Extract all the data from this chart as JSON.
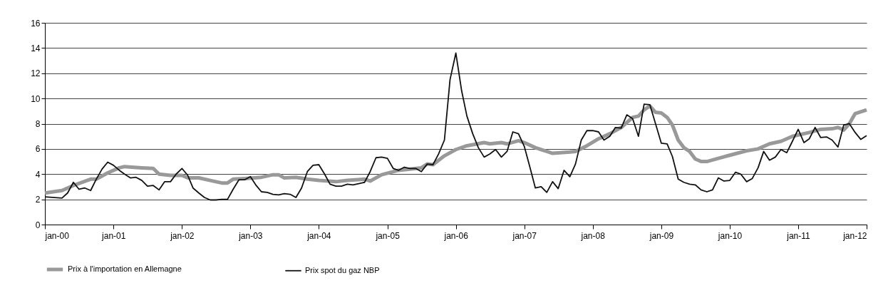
{
  "chart_data": {
    "type": "line",
    "xlim": [
      "2000-01",
      "2012-01"
    ],
    "xticks": [
      {
        "value": "2000-01",
        "label": "jan-00"
      },
      {
        "value": "2001-01",
        "label": "jan-01"
      },
      {
        "value": "2002-01",
        "label": "jan-02"
      },
      {
        "value": "2003-01",
        "label": "jan-03"
      },
      {
        "value": "2004-01",
        "label": "jan-04"
      },
      {
        "value": "2005-01",
        "label": "jan-05"
      },
      {
        "value": "2006-01",
        "label": "jan-06"
      },
      {
        "value": "2007-01",
        "label": "jan-07"
      },
      {
        "value": "2008-01",
        "label": "jan-08"
      },
      {
        "value": "2009-01",
        "label": "jan-09"
      },
      {
        "value": "2010-01",
        "label": "jan-10"
      },
      {
        "value": "2011-01",
        "label": "jan-11"
      },
      {
        "value": "2012-01",
        "label": "jan-12"
      }
    ],
    "ylim": [
      0,
      16
    ],
    "yticks": [
      0,
      2,
      4,
      6,
      8,
      10,
      12,
      14,
      16
    ],
    "grid": "y",
    "legend": "bottom",
    "marker": "none",
    "series": [
      {
        "name": "Prix à l'importation en Allemagne",
        "color": "#999999",
        "x": [
          "2000-01",
          "2000-04",
          "2000-06",
          "2000-09",
          "2000-10",
          "2000-12",
          "2001-02",
          "2001-03",
          "2001-06",
          "2001-08",
          "2001-09",
          "2001-11",
          "2002-01",
          "2002-02",
          "2002-04",
          "2002-06",
          "2002-08",
          "2002-09",
          "2002-10",
          "2002-12",
          "2003-03",
          "2003-05",
          "2003-06",
          "2003-07",
          "2003-09",
          "2003-11",
          "2004-01",
          "2004-04",
          "2004-06",
          "2004-09",
          "2004-10",
          "2004-12",
          "2005-03",
          "2005-07",
          "2005-08",
          "2005-09",
          "2005-11",
          "2006-01",
          "2006-03",
          "2006-06",
          "2006-07",
          "2006-09",
          "2006-10",
          "2006-12",
          "2007-01",
          "2007-03",
          "2007-06",
          "2007-09",
          "2007-10",
          "2007-12",
          "2008-02",
          "2008-04",
          "2008-06",
          "2008-08",
          "2008-09",
          "2008-10",
          "2008-11",
          "2008-12",
          "2009-01",
          "2009-02",
          "2009-03",
          "2009-04",
          "2009-05",
          "2009-06",
          "2009-07",
          "2009-08",
          "2009-09",
          "2009-11",
          "2010-01",
          "2010-04",
          "2010-06",
          "2010-08",
          "2010-10",
          "2010-12",
          "2011-03",
          "2011-05",
          "2011-07",
          "2011-08",
          "2011-09",
          "2011-10",
          "2011-11",
          "2012-01"
        ],
        "values": [
          2.5,
          2.7,
          3.1,
          3.6,
          3.6,
          4.1,
          4.5,
          4.6,
          4.5,
          4.45,
          4.0,
          3.9,
          3.9,
          3.7,
          3.7,
          3.5,
          3.3,
          3.3,
          3.6,
          3.65,
          3.75,
          3.95,
          3.95,
          3.7,
          3.75,
          3.6,
          3.5,
          3.4,
          3.5,
          3.6,
          3.45,
          3.95,
          4.3,
          4.5,
          4.8,
          4.75,
          5.45,
          5.95,
          6.25,
          6.5,
          6.4,
          6.5,
          6.4,
          6.65,
          6.5,
          6.1,
          5.65,
          5.75,
          5.8,
          6.25,
          6.8,
          7.2,
          7.7,
          8.5,
          8.6,
          9.1,
          9.4,
          8.9,
          8.85,
          8.5,
          7.9,
          6.7,
          6.1,
          5.8,
          5.2,
          5.0,
          5.0,
          5.25,
          5.5,
          5.85,
          6.0,
          6.4,
          6.6,
          7.0,
          7.3,
          7.55,
          7.6,
          7.7,
          7.5,
          8.0,
          8.8,
          9.1
        ]
      },
      {
        "name": "Prix spot du gaz NBP",
        "color": "#111111",
        "x": [
          "2000-01",
          "2000-04",
          "2000-05",
          "2000-06",
          "2000-07",
          "2000-08",
          "2000-09",
          "2000-10",
          "2000-11",
          "2000-12",
          "2001-01",
          "2001-02",
          "2001-03",
          "2001-04",
          "2001-05",
          "2001-06",
          "2001-07",
          "2001-08",
          "2001-09",
          "2001-10",
          "2001-11",
          "2001-12",
          "2002-01",
          "2002-02",
          "2002-03",
          "2002-04",
          "2002-05",
          "2002-06",
          "2002-07",
          "2002-08",
          "2002-09",
          "2002-10",
          "2002-11",
          "2002-12",
          "2003-01",
          "2003-02",
          "2003-03",
          "2003-04",
          "2003-05",
          "2003-06",
          "2003-07",
          "2003-08",
          "2003-09",
          "2003-10",
          "2003-11",
          "2003-12",
          "2004-01",
          "2004-02",
          "2004-03",
          "2004-04",
          "2004-05",
          "2004-06",
          "2004-07",
          "2004-08",
          "2004-09",
          "2004-10",
          "2004-11",
          "2004-12",
          "2005-01",
          "2005-02",
          "2005-03",
          "2005-04",
          "2005-05",
          "2005-06",
          "2005-07",
          "2005-08",
          "2005-09",
          "2005-10",
          "2005-11",
          "2005-12",
          "2006-01",
          "2006-02",
          "2006-03",
          "2006-04",
          "2006-05",
          "2006-06",
          "2006-07",
          "2006-08",
          "2006-09",
          "2006-10",
          "2006-11",
          "2006-12",
          "2007-01",
          "2007-02",
          "2007-03",
          "2007-04",
          "2007-05",
          "2007-06",
          "2007-07",
          "2007-08",
          "2007-09",
          "2007-10",
          "2007-11",
          "2007-12",
          "2008-01",
          "2008-02",
          "2008-03",
          "2008-04",
          "2008-05",
          "2008-06",
          "2008-07",
          "2008-08",
          "2008-09",
          "2008-10",
          "2008-11",
          "2008-12",
          "2009-01",
          "2009-02",
          "2009-03",
          "2009-04",
          "2009-05",
          "2009-06",
          "2009-07",
          "2009-08",
          "2009-09",
          "2009-10",
          "2009-11",
          "2009-12",
          "2010-01",
          "2010-02",
          "2010-03",
          "2010-04",
          "2010-05",
          "2010-06",
          "2010-07",
          "2010-08",
          "2010-09",
          "2010-10",
          "2010-11",
          "2010-12",
          "2011-01",
          "2011-02",
          "2011-03",
          "2011-04",
          "2011-05",
          "2011-06",
          "2011-07",
          "2011-08",
          "2011-09",
          "2011-10",
          "2011-11",
          "2011-12",
          "2012-01"
        ],
        "values": [
          2.2,
          2.1,
          2.5,
          3.35,
          2.8,
          2.9,
          2.7,
          3.6,
          4.4,
          4.95,
          4.7,
          4.3,
          4.0,
          3.7,
          3.75,
          3.5,
          3.05,
          3.1,
          2.75,
          3.4,
          3.4,
          4.0,
          4.45,
          3.9,
          2.9,
          2.5,
          2.15,
          1.95,
          1.95,
          2.0,
          2.0,
          2.8,
          3.55,
          3.55,
          3.8,
          3.1,
          2.6,
          2.55,
          2.4,
          2.35,
          2.45,
          2.4,
          2.15,
          2.9,
          4.2,
          4.7,
          4.75,
          4.0,
          3.2,
          3.05,
          3.05,
          3.2,
          3.15,
          3.25,
          3.35,
          4.2,
          5.3,
          5.35,
          5.25,
          4.45,
          4.3,
          4.55,
          4.45,
          4.45,
          4.2,
          4.8,
          4.75,
          5.6,
          6.7,
          11.5,
          13.6,
          10.6,
          8.6,
          7.2,
          6.1,
          5.35,
          5.6,
          5.95,
          5.35,
          5.8,
          7.35,
          7.2,
          6.2,
          4.5,
          2.9,
          3.0,
          2.55,
          3.4,
          2.85,
          4.3,
          3.8,
          4.8,
          6.7,
          7.45,
          7.45,
          7.35,
          6.7,
          7.0,
          7.7,
          7.65,
          8.7,
          8.4,
          7.0,
          9.55,
          9.5,
          8.0,
          6.45,
          6.4,
          5.4,
          3.6,
          3.35,
          3.2,
          3.15,
          2.75,
          2.6,
          2.75,
          3.7,
          3.45,
          3.5,
          4.15,
          4.0,
          3.4,
          3.65,
          4.5,
          5.8,
          5.1,
          5.35,
          5.95,
          5.7,
          6.6,
          7.55,
          6.5,
          6.8,
          7.7,
          6.9,
          6.95,
          6.7,
          6.15,
          7.9,
          8.0,
          7.3,
          6.75,
          7.05
        ]
      }
    ]
  }
}
